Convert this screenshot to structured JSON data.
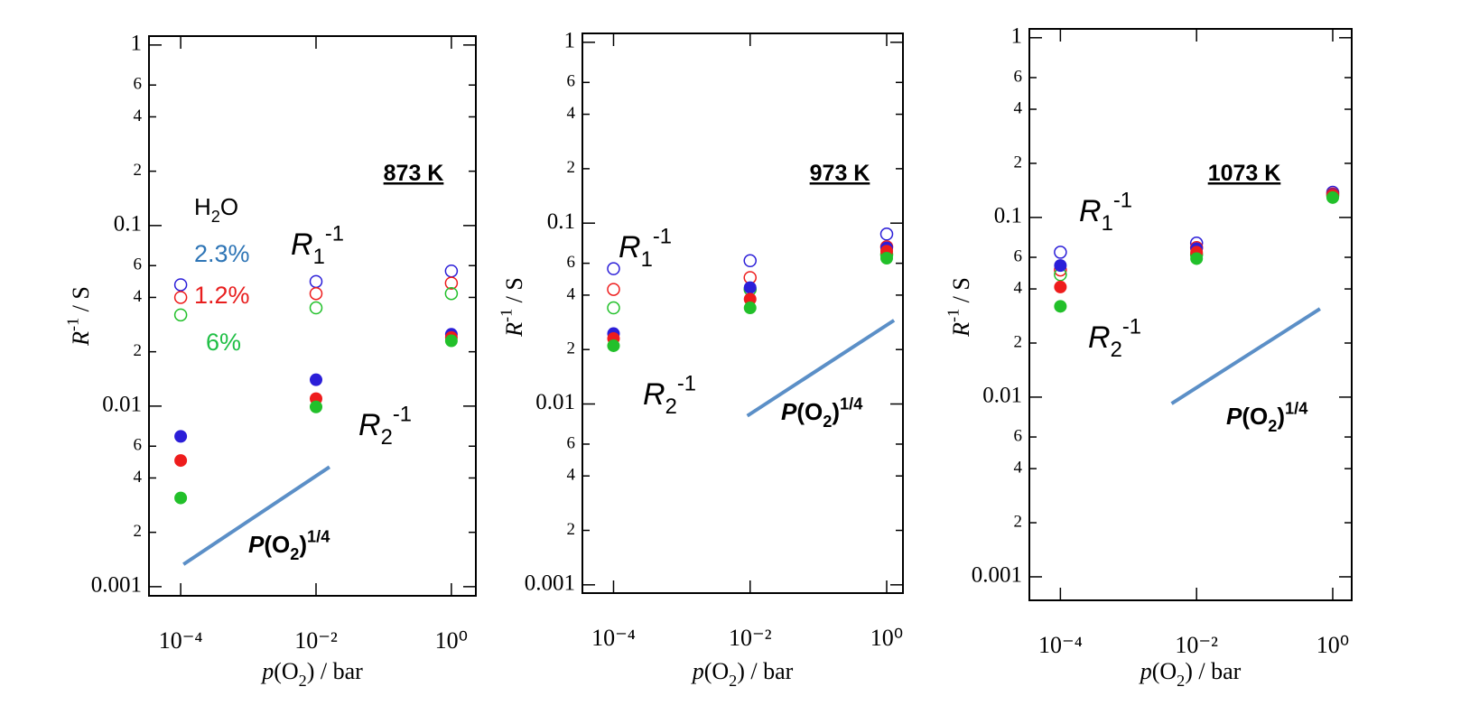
{
  "chart_data": [
    {
      "type": "scatter",
      "title": "873 K",
      "xlabel": {
        "var": "p",
        "main": "(O",
        "sub": "2",
        "tail": ") / bar"
      },
      "ylabel": {
        "var": "R",
        "sup": "-1",
        "tail": " / S"
      },
      "xscale": "log",
      "yscale": "log",
      "xlim": [
        3.4e-05,
        2.3
      ],
      "ylim": [
        0.00089,
        1.12
      ],
      "xticks": [
        {
          "value": 0.0001,
          "label": "10⁻⁴"
        },
        {
          "value": 0.01,
          "label": "10⁻²"
        },
        {
          "value": 1,
          "label": "10⁰"
        }
      ],
      "yticks": [
        0.001,
        {
          "value": 0.002,
          "label": "2"
        },
        {
          "value": 0.004,
          "label": "4"
        },
        {
          "value": 0.006,
          "label": "6"
        },
        0.01,
        {
          "value": 0.02,
          "label": "2"
        },
        {
          "value": 0.04,
          "label": "4"
        },
        {
          "value": 0.06,
          "label": "6"
        },
        0.1,
        {
          "value": 0.2,
          "label": "2"
        },
        {
          "value": 0.4,
          "label": "4"
        },
        {
          "value": 0.6,
          "label": "6"
        },
        1
      ],
      "x": [
        0.0001,
        0.01,
        1
      ],
      "legend_title": {
        "main": "H",
        "sub": "2",
        "tail": "O"
      },
      "series": [
        {
          "name": "2.3%",
          "color": "#2b1ed8",
          "label_color": "#2e75b6",
          "r1": [
            0.047,
            0.049,
            0.056
          ],
          "r2": [
            0.0068,
            0.014,
            0.025
          ]
        },
        {
          "name": "1.2%",
          "color": "#ee1c1c",
          "label_color": "#e81e1e",
          "r1": [
            0.04,
            0.042,
            0.048
          ],
          "r2": [
            0.005,
            0.011,
            0.024
          ]
        },
        {
          "name": "6%",
          "color": "#22c02a",
          "label_color": "#1fbf45",
          "r1": [
            0.032,
            0.035,
            0.042
          ],
          "r2": [
            0.0031,
            0.0099,
            0.023
          ]
        }
      ],
      "r1_label": {
        "var": "R",
        "sub": "1",
        "sup": "-1"
      },
      "r2_label": {
        "var": "R",
        "sub": "2",
        "sup": "-1"
      },
      "slope": {
        "label": {
          "var": "P",
          "main": "(O",
          "sub": "2",
          "tail": ")",
          "sup": "1/4"
        },
        "x": [
          0.00011,
          0.0158
        ],
        "y": [
          0.00133,
          0.0046
        ],
        "color": "#5b8fc7"
      }
    },
    {
      "type": "scatter",
      "title": "973 K",
      "xlabel": {
        "var": "p",
        "main": "(O",
        "sub": "2",
        "tail": ") / bar"
      },
      "ylabel": {
        "var": "R",
        "sup": "-1",
        "tail": " / S"
      },
      "xscale": "log",
      "yscale": "log",
      "xlim": [
        3.5e-05,
        1.73
      ],
      "ylim": [
        0.0009,
        1.12
      ],
      "xticks": [
        {
          "value": 0.0001,
          "label": "10⁻⁴"
        },
        {
          "value": 0.01,
          "label": "10⁻²"
        },
        {
          "value": 1,
          "label": "10⁰"
        }
      ],
      "yticks": [
        0.001,
        {
          "value": 0.002,
          "label": "2"
        },
        {
          "value": 0.004,
          "label": "4"
        },
        {
          "value": 0.006,
          "label": "6"
        },
        0.01,
        {
          "value": 0.02,
          "label": "2"
        },
        {
          "value": 0.04,
          "label": "4"
        },
        {
          "value": 0.06,
          "label": "6"
        },
        0.1,
        {
          "value": 0.2,
          "label": "2"
        },
        {
          "value": 0.4,
          "label": "4"
        },
        {
          "value": 0.6,
          "label": "6"
        },
        1
      ],
      "x": [
        0.0001,
        0.01,
        1
      ],
      "series": [
        {
          "color": "#2b1ed8",
          "r1": [
            0.056,
            0.062,
            0.087
          ],
          "r2": [
            0.0245,
            0.044,
            0.073
          ]
        },
        {
          "color": "#ee1c1c",
          "r1": [
            0.043,
            0.05,
            0.074
          ],
          "r2": [
            0.023,
            0.038,
            0.07
          ]
        },
        {
          "color": "#22c02a",
          "r1": [
            0.034,
            0.043,
            0.067
          ],
          "r2": [
            0.021,
            0.034,
            0.064
          ]
        }
      ],
      "r1_label": {
        "var": "R",
        "sub": "1",
        "sup": "-1"
      },
      "r2_label": {
        "var": "R",
        "sub": "2",
        "sup": "-1"
      },
      "slope": {
        "label": {
          "var": "P",
          "main": "(O",
          "sub": "2",
          "tail": ")",
          "sup": "1/4"
        },
        "x": [
          0.0091,
          1.28
        ],
        "y": [
          0.0086,
          0.029
        ],
        "color": "#5b8fc7"
      }
    },
    {
      "type": "scatter",
      "title": "1073 K",
      "xlabel": {
        "var": "p",
        "main": "(O",
        "sub": "2",
        "tail": ") / bar"
      },
      "ylabel": {
        "var": "R",
        "sup": "-1",
        "tail": " / S"
      },
      "xscale": "log",
      "yscale": "log",
      "xlim": [
        3.5e-05,
        1.9
      ],
      "ylim": [
        0.00074,
        1.12
      ],
      "xticks": [
        {
          "value": 0.0001,
          "label": "10⁻⁴"
        },
        {
          "value": 0.01,
          "label": "10⁻²"
        },
        {
          "value": 1,
          "label": "10⁰"
        }
      ],
      "yticks": [
        0.001,
        {
          "value": 0.002,
          "label": "2"
        },
        {
          "value": 0.004,
          "label": "4"
        },
        {
          "value": 0.006,
          "label": "6"
        },
        0.01,
        {
          "value": 0.02,
          "label": "2"
        },
        {
          "value": 0.04,
          "label": "4"
        },
        {
          "value": 0.06,
          "label": "6"
        },
        0.1,
        {
          "value": 0.2,
          "label": "2"
        },
        {
          "value": 0.4,
          "label": "4"
        },
        {
          "value": 0.6,
          "label": "6"
        },
        1
      ],
      "x": [
        0.0001,
        0.01,
        1
      ],
      "series": [
        {
          "color": "#2b1ed8",
          "r1": [
            0.064,
            0.072,
            0.138
          ],
          "r2": [
            0.054,
            0.067,
            0.134
          ]
        },
        {
          "color": "#ee1c1c",
          "r1": [
            0.051,
            0.068,
            0.135
          ],
          "r2": [
            0.041,
            0.064,
            0.133
          ]
        },
        {
          "color": "#22c02a",
          "r1": [
            0.048,
            0.062,
            0.132
          ],
          "r2": [
            0.032,
            0.059,
            0.129
          ]
        }
      ],
      "r1_label": {
        "var": "R",
        "sub": "1",
        "sup": "-1"
      },
      "r2_label": {
        "var": "R",
        "sub": "2",
        "sup": "-1"
      },
      "slope": {
        "label": {
          "var": "P",
          "main": "(O",
          "sub": "2",
          "tail": ")",
          "sup": "1/4"
        },
        "x": [
          0.0043,
          0.65
        ],
        "y": [
          0.0092,
          0.031
        ],
        "color": "#5b8fc7"
      }
    }
  ]
}
